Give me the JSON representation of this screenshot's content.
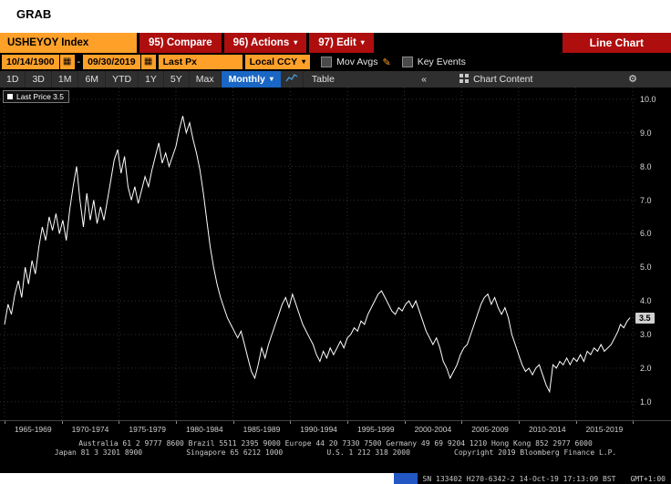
{
  "page": {
    "grab": "GRAB"
  },
  "header": {
    "ticker": "USHEYOY Index",
    "compare": "95) Compare",
    "actions": "96) Actions",
    "edit": "97) Edit",
    "title": "Line Chart"
  },
  "controls": {
    "date_from": "10/14/1900",
    "date_sep": "-",
    "date_to": "09/30/2019",
    "px_type": "Last Px",
    "currency": "Local CCY",
    "mov_avgs": "Mov Avgs",
    "key_events": "Key Events"
  },
  "tabbar": {
    "ranges": [
      "1D",
      "3D",
      "1M",
      "6M",
      "YTD",
      "1Y",
      "5Y",
      "Max"
    ],
    "period": "Monthly",
    "table": "Table",
    "collapse": "«",
    "chart_content": "Chart Content"
  },
  "chart_data": {
    "type": "line",
    "legend": "Last Price 3.5",
    "last_badge": "3.5",
    "ylim": [
      0.45,
      10.35
    ],
    "yticks": [
      1,
      2,
      3,
      4,
      5,
      6,
      7,
      8,
      9,
      10
    ],
    "xlim": [
      1964.6,
      2020.3
    ],
    "x_boundaries": [
      1965,
      1970,
      1975,
      1980,
      1985,
      1990,
      1995,
      2000,
      2005,
      2010,
      2015,
      2020
    ],
    "x_ranges": [
      "1965-1969",
      "1970-1974",
      "1975-1979",
      "1980-1984",
      "1985-1989",
      "1990-1994",
      "1995-1999",
      "2000-2004",
      "2005-2009",
      "2010-2014",
      "2015-2019"
    ],
    "grid": true,
    "legend_position": "top-left",
    "points": [
      [
        1965.0,
        3.3
      ],
      [
        1965.3,
        3.9
      ],
      [
        1965.6,
        3.6
      ],
      [
        1965.9,
        4.2
      ],
      [
        1966.2,
        4.6
      ],
      [
        1966.5,
        4.1
      ],
      [
        1966.8,
        5.0
      ],
      [
        1967.1,
        4.5
      ],
      [
        1967.4,
        5.2
      ],
      [
        1967.7,
        4.8
      ],
      [
        1968.0,
        5.6
      ],
      [
        1968.3,
        6.2
      ],
      [
        1968.6,
        5.8
      ],
      [
        1968.9,
        6.5
      ],
      [
        1969.2,
        6.1
      ],
      [
        1969.5,
        6.6
      ],
      [
        1969.8,
        6.0
      ],
      [
        1970.1,
        6.4
      ],
      [
        1970.4,
        5.8
      ],
      [
        1970.7,
        6.7
      ],
      [
        1971.0,
        7.4
      ],
      [
        1971.3,
        8.0
      ],
      [
        1971.6,
        7.0
      ],
      [
        1971.9,
        6.2
      ],
      [
        1972.2,
        7.2
      ],
      [
        1972.5,
        6.4
      ],
      [
        1972.8,
        7.0
      ],
      [
        1973.1,
        6.3
      ],
      [
        1973.4,
        6.8
      ],
      [
        1973.7,
        6.4
      ],
      [
        1974.0,
        7.0
      ],
      [
        1974.3,
        7.6
      ],
      [
        1974.6,
        8.2
      ],
      [
        1974.9,
        8.5
      ],
      [
        1975.2,
        7.8
      ],
      [
        1975.5,
        8.3
      ],
      [
        1975.8,
        7.4
      ],
      [
        1976.1,
        7.0
      ],
      [
        1976.4,
        7.4
      ],
      [
        1976.7,
        6.9
      ],
      [
        1977.0,
        7.3
      ],
      [
        1977.3,
        7.7
      ],
      [
        1977.6,
        7.4
      ],
      [
        1977.9,
        7.9
      ],
      [
        1978.2,
        8.3
      ],
      [
        1978.5,
        8.7
      ],
      [
        1978.8,
        8.1
      ],
      [
        1979.1,
        8.4
      ],
      [
        1979.4,
        8.0
      ],
      [
        1979.7,
        8.3
      ],
      [
        1980.0,
        8.6
      ],
      [
        1980.3,
        9.1
      ],
      [
        1980.6,
        9.5
      ],
      [
        1980.9,
        9.0
      ],
      [
        1981.2,
        9.3
      ],
      [
        1981.5,
        8.8
      ],
      [
        1981.8,
        8.4
      ],
      [
        1982.1,
        7.9
      ],
      [
        1982.4,
        7.2
      ],
      [
        1982.7,
        6.4
      ],
      [
        1983.0,
        5.6
      ],
      [
        1983.3,
        5.0
      ],
      [
        1983.6,
        4.5
      ],
      [
        1983.9,
        4.1
      ],
      [
        1984.2,
        3.8
      ],
      [
        1984.5,
        3.5
      ],
      [
        1984.8,
        3.3
      ],
      [
        1985.1,
        3.1
      ],
      [
        1985.4,
        2.9
      ],
      [
        1985.7,
        3.1
      ],
      [
        1986.0,
        2.7
      ],
      [
        1986.3,
        2.3
      ],
      [
        1986.6,
        1.9
      ],
      [
        1986.9,
        1.7
      ],
      [
        1987.2,
        2.1
      ],
      [
        1987.5,
        2.6
      ],
      [
        1987.8,
        2.3
      ],
      [
        1988.1,
        2.7
      ],
      [
        1988.4,
        3.0
      ],
      [
        1988.7,
        3.3
      ],
      [
        1989.0,
        3.6
      ],
      [
        1989.3,
        3.9
      ],
      [
        1989.6,
        4.1
      ],
      [
        1989.9,
        3.8
      ],
      [
        1990.2,
        4.2
      ],
      [
        1990.5,
        3.9
      ],
      [
        1990.8,
        3.6
      ],
      [
        1991.1,
        3.3
      ],
      [
        1991.4,
        3.1
      ],
      [
        1991.7,
        2.9
      ],
      [
        1992.0,
        2.7
      ],
      [
        1992.3,
        2.4
      ],
      [
        1992.6,
        2.2
      ],
      [
        1992.9,
        2.5
      ],
      [
        1993.2,
        2.3
      ],
      [
        1993.5,
        2.6
      ],
      [
        1993.8,
        2.4
      ],
      [
        1994.1,
        2.6
      ],
      [
        1994.4,
        2.8
      ],
      [
        1994.7,
        2.6
      ],
      [
        1995.0,
        2.9
      ],
      [
        1995.3,
        3.0
      ],
      [
        1995.6,
        3.2
      ],
      [
        1995.9,
        3.1
      ],
      [
        1996.2,
        3.4
      ],
      [
        1996.5,
        3.3
      ],
      [
        1996.8,
        3.6
      ],
      [
        1997.1,
        3.8
      ],
      [
        1997.4,
        4.0
      ],
      [
        1997.7,
        4.2
      ],
      [
        1998.0,
        4.3
      ],
      [
        1998.3,
        4.1
      ],
      [
        1998.6,
        3.9
      ],
      [
        1998.9,
        3.7
      ],
      [
        1999.2,
        3.6
      ],
      [
        1999.5,
        3.8
      ],
      [
        1999.8,
        3.7
      ],
      [
        2000.1,
        3.9
      ],
      [
        2000.4,
        4.0
      ],
      [
        2000.7,
        3.8
      ],
      [
        2001.0,
        4.0
      ],
      [
        2001.3,
        3.7
      ],
      [
        2001.6,
        3.4
      ],
      [
        2001.9,
        3.1
      ],
      [
        2002.2,
        2.9
      ],
      [
        2002.5,
        2.7
      ],
      [
        2002.8,
        2.9
      ],
      [
        2003.1,
        2.6
      ],
      [
        2003.4,
        2.2
      ],
      [
        2003.7,
        2.0
      ],
      [
        2004.0,
        1.7
      ],
      [
        2004.3,
        1.9
      ],
      [
        2004.6,
        2.1
      ],
      [
        2004.9,
        2.4
      ],
      [
        2005.2,
        2.6
      ],
      [
        2005.5,
        2.7
      ],
      [
        2005.8,
        3.0
      ],
      [
        2006.1,
        3.3
      ],
      [
        2006.4,
        3.6
      ],
      [
        2006.7,
        3.9
      ],
      [
        2007.0,
        4.1
      ],
      [
        2007.3,
        4.2
      ],
      [
        2007.6,
        3.9
      ],
      [
        2007.9,
        4.1
      ],
      [
        2008.2,
        3.8
      ],
      [
        2008.5,
        3.6
      ],
      [
        2008.8,
        3.8
      ],
      [
        2009.1,
        3.5
      ],
      [
        2009.4,
        3.0
      ],
      [
        2009.7,
        2.7
      ],
      [
        2010.0,
        2.4
      ],
      [
        2010.3,
        2.1
      ],
      [
        2010.6,
        1.9
      ],
      [
        2010.9,
        2.0
      ],
      [
        2011.2,
        1.8
      ],
      [
        2011.5,
        2.0
      ],
      [
        2011.8,
        2.1
      ],
      [
        2012.1,
        1.8
      ],
      [
        2012.4,
        1.5
      ],
      [
        2012.7,
        1.3
      ],
      [
        2013.0,
        2.1
      ],
      [
        2013.3,
        2.0
      ],
      [
        2013.6,
        2.2
      ],
      [
        2013.9,
        2.1
      ],
      [
        2014.2,
        2.3
      ],
      [
        2014.5,
        2.1
      ],
      [
        2014.8,
        2.3
      ],
      [
        2015.1,
        2.2
      ],
      [
        2015.4,
        2.4
      ],
      [
        2015.7,
        2.2
      ],
      [
        2016.0,
        2.5
      ],
      [
        2016.3,
        2.4
      ],
      [
        2016.6,
        2.6
      ],
      [
        2016.9,
        2.5
      ],
      [
        2017.2,
        2.7
      ],
      [
        2017.5,
        2.5
      ],
      [
        2017.8,
        2.6
      ],
      [
        2018.1,
        2.7
      ],
      [
        2018.4,
        2.9
      ],
      [
        2018.7,
        3.1
      ],
      [
        2018.9,
        3.3
      ],
      [
        2019.2,
        3.2
      ],
      [
        2019.5,
        3.4
      ],
      [
        2019.75,
        3.5
      ]
    ]
  },
  "footer": {
    "line1": "Australia 61 2 9777 8600 Brazil 5511 2395 9000 Europe 44 20 7330 7500 Germany 49 69 9204 1210 Hong Kong 852 2977 6000",
    "line2": "Japan 81 3 3201 8900          Singapore 65 6212 1000          U.S. 1 212 318 2000          Copyright 2019 Bloomberg Finance L.P.",
    "status": "SN 133402 H270-6342-2 14-Oct-19 17:13:09 BST",
    "tz": "GMT+1:00"
  }
}
